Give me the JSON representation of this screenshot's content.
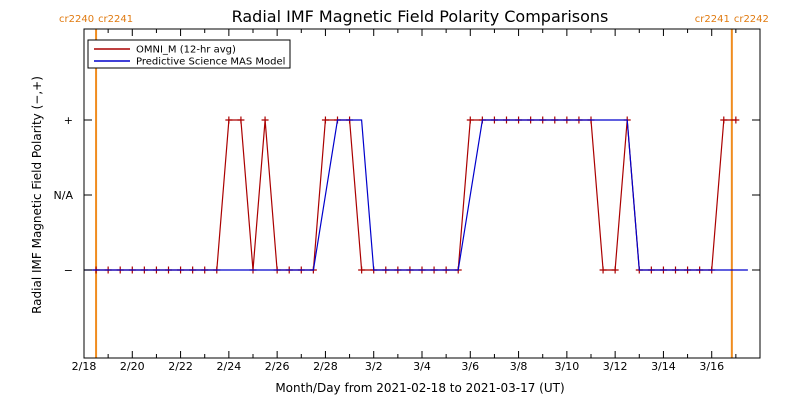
{
  "chart_data": {
    "type": "line",
    "title": "Radial IMF Magnetic Field Polarity Comparisons",
    "xlabel": "Month/Day from 2021-02-18 to 2021-03-17 (UT)",
    "ylabel": "Radial IMF Magnetic Field Polarity (−,+)",
    "xlim": [
      "2021-02-18",
      "2021-03-17"
    ],
    "y_categories": [
      "−",
      "N/A",
      "+"
    ],
    "x_ticks": [
      "2/18",
      "2/20",
      "2/22",
      "2/24",
      "2/26",
      "2/28",
      "3/2",
      "3/4",
      "3/6",
      "3/8",
      "3/10",
      "3/12",
      "3/14",
      "3/16"
    ],
    "y_ticks": [
      "−",
      "N/A",
      "+"
    ],
    "legend_position": "top-left",
    "carrington_markers": [
      {
        "date": "2021-02-18T12:00",
        "left_label": "cr2240",
        "right_label": "cr2241",
        "color": "#f08c1e"
      },
      {
        "date": "2021-03-16T20:00",
        "left_label": "cr2241",
        "right_label": "cr2242",
        "color": "#f08c1e"
      }
    ],
    "series": [
      {
        "name": "OMNI_M (12-hr avg)",
        "color": "#aa0000",
        "marker": "+",
        "points": [
          {
            "x": "2021-02-18T12:00",
            "y": "−"
          },
          {
            "x": "2021-02-19T00:00",
            "y": "−"
          },
          {
            "x": "2021-02-19T12:00",
            "y": "−"
          },
          {
            "x": "2021-02-20T00:00",
            "y": "−"
          },
          {
            "x": "2021-02-20T12:00",
            "y": "−"
          },
          {
            "x": "2021-02-21T00:00",
            "y": "−"
          },
          {
            "x": "2021-02-21T12:00",
            "y": "−"
          },
          {
            "x": "2021-02-22T00:00",
            "y": "−"
          },
          {
            "x": "2021-02-22T12:00",
            "y": "−"
          },
          {
            "x": "2021-02-23T00:00",
            "y": "−"
          },
          {
            "x": "2021-02-23T12:00",
            "y": "−"
          },
          {
            "x": "2021-02-24T00:00",
            "y": "+"
          },
          {
            "x": "2021-02-24T12:00",
            "y": "+"
          },
          {
            "x": "2021-02-25T00:00",
            "y": "−"
          },
          {
            "x": "2021-02-25T12:00",
            "y": "+"
          },
          {
            "x": "2021-02-26T00:00",
            "y": "−"
          },
          {
            "x": "2021-02-26T12:00",
            "y": "−"
          },
          {
            "x": "2021-02-27T00:00",
            "y": "−"
          },
          {
            "x": "2021-02-27T12:00",
            "y": "−"
          },
          {
            "x": "2021-02-28T00:00",
            "y": "+"
          },
          {
            "x": "2021-02-28T12:00",
            "y": "+"
          },
          {
            "x": "2021-03-01T00:00",
            "y": "+"
          },
          {
            "x": "2021-03-01T12:00",
            "y": "−"
          },
          {
            "x": "2021-03-02T00:00",
            "y": "−"
          },
          {
            "x": "2021-03-02T12:00",
            "y": "−"
          },
          {
            "x": "2021-03-03T00:00",
            "y": "−"
          },
          {
            "x": "2021-03-03T12:00",
            "y": "−"
          },
          {
            "x": "2021-03-04T00:00",
            "y": "−"
          },
          {
            "x": "2021-03-04T12:00",
            "y": "−"
          },
          {
            "x": "2021-03-05T00:00",
            "y": "−"
          },
          {
            "x": "2021-03-05T12:00",
            "y": "−"
          },
          {
            "x": "2021-03-06T00:00",
            "y": "+"
          },
          {
            "x": "2021-03-06T12:00",
            "y": "+"
          },
          {
            "x": "2021-03-07T00:00",
            "y": "+"
          },
          {
            "x": "2021-03-07T12:00",
            "y": "+"
          },
          {
            "x": "2021-03-08T00:00",
            "y": "+"
          },
          {
            "x": "2021-03-08T12:00",
            "y": "+"
          },
          {
            "x": "2021-03-09T00:00",
            "y": "+"
          },
          {
            "x": "2021-03-09T12:00",
            "y": "+"
          },
          {
            "x": "2021-03-10T00:00",
            "y": "+"
          },
          {
            "x": "2021-03-10T12:00",
            "y": "+"
          },
          {
            "x": "2021-03-11T00:00",
            "y": "+"
          },
          {
            "x": "2021-03-11T12:00",
            "y": "−"
          },
          {
            "x": "2021-03-12T00:00",
            "y": "−"
          },
          {
            "x": "2021-03-12T12:00",
            "y": "+"
          },
          {
            "x": "2021-03-13T00:00",
            "y": "−"
          },
          {
            "x": "2021-03-13T12:00",
            "y": "−"
          },
          {
            "x": "2021-03-14T00:00",
            "y": "−"
          },
          {
            "x": "2021-03-14T12:00",
            "y": "−"
          },
          {
            "x": "2021-03-15T00:00",
            "y": "−"
          },
          {
            "x": "2021-03-15T12:00",
            "y": "−"
          },
          {
            "x": "2021-03-16T00:00",
            "y": "−"
          },
          {
            "x": "2021-03-16T12:00",
            "y": "+"
          },
          {
            "x": "2021-03-17T00:00",
            "y": "+"
          }
        ]
      },
      {
        "name": "Predictive Science MAS Model",
        "color": "#0000cc",
        "points": [
          {
            "x": "2021-02-18T00:00",
            "y": "−"
          },
          {
            "x": "2021-02-27T12:00",
            "y": "−"
          },
          {
            "x": "2021-02-28T12:00",
            "y": "+"
          },
          {
            "x": "2021-03-01T12:00",
            "y": "+"
          },
          {
            "x": "2021-03-02T00:00",
            "y": "−"
          },
          {
            "x": "2021-03-05T12:00",
            "y": "−"
          },
          {
            "x": "2021-03-06T12:00",
            "y": "+"
          },
          {
            "x": "2021-03-12T12:00",
            "y": "+"
          },
          {
            "x": "2021-03-13T00:00",
            "y": "−"
          },
          {
            "x": "2021-03-17T12:00",
            "y": "−"
          }
        ]
      }
    ]
  }
}
